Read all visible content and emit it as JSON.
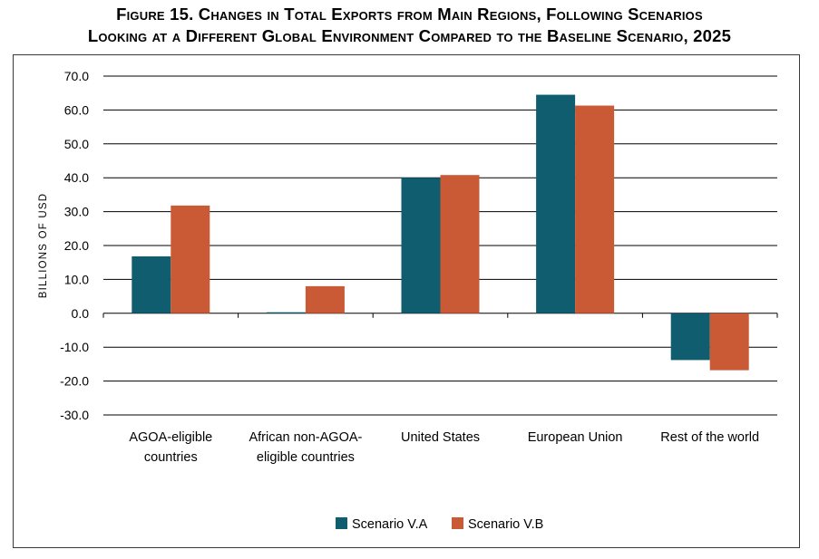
{
  "title": {
    "line1": "Figure 15. Changes in Total Exports from Main Regions, Following Scenarios",
    "line2": "Looking at a Different Global Environment Compared to the Baseline Scenario, 2025"
  },
  "colors": {
    "scenario_a": "#0f5d6e",
    "scenario_b": "#c95a35",
    "grid": "#000000"
  },
  "chart_data": {
    "type": "bar",
    "ylabel": "BILLIONS OF USD",
    "ylim": [
      -30,
      70
    ],
    "yticks": [
      70,
      60,
      50,
      40,
      30,
      20,
      10,
      0,
      -10,
      -20,
      -30
    ],
    "ytick_labels": [
      "70.0",
      "60.0",
      "50.0",
      "40.0",
      "30.0",
      "20.0",
      "10.0",
      "0.0",
      "-10.0",
      "-20.0",
      "-30.0"
    ],
    "grid": true,
    "legend_position": "bottom",
    "categories": [
      [
        "AGOA-eligible",
        "countries"
      ],
      [
        "African non-AGOA-",
        "eligible countries"
      ],
      [
        "United States"
      ],
      [
        "European Union"
      ],
      [
        "Rest of the world"
      ]
    ],
    "series": [
      {
        "name": "Scenario V.A",
        "color": "#0f5d6e",
        "values": [
          16.8,
          0.3,
          40.0,
          64.5,
          -13.8
        ]
      },
      {
        "name": "Scenario V.B",
        "color": "#c95a35",
        "values": [
          31.8,
          8.0,
          40.8,
          61.3,
          -16.8
        ]
      }
    ]
  }
}
